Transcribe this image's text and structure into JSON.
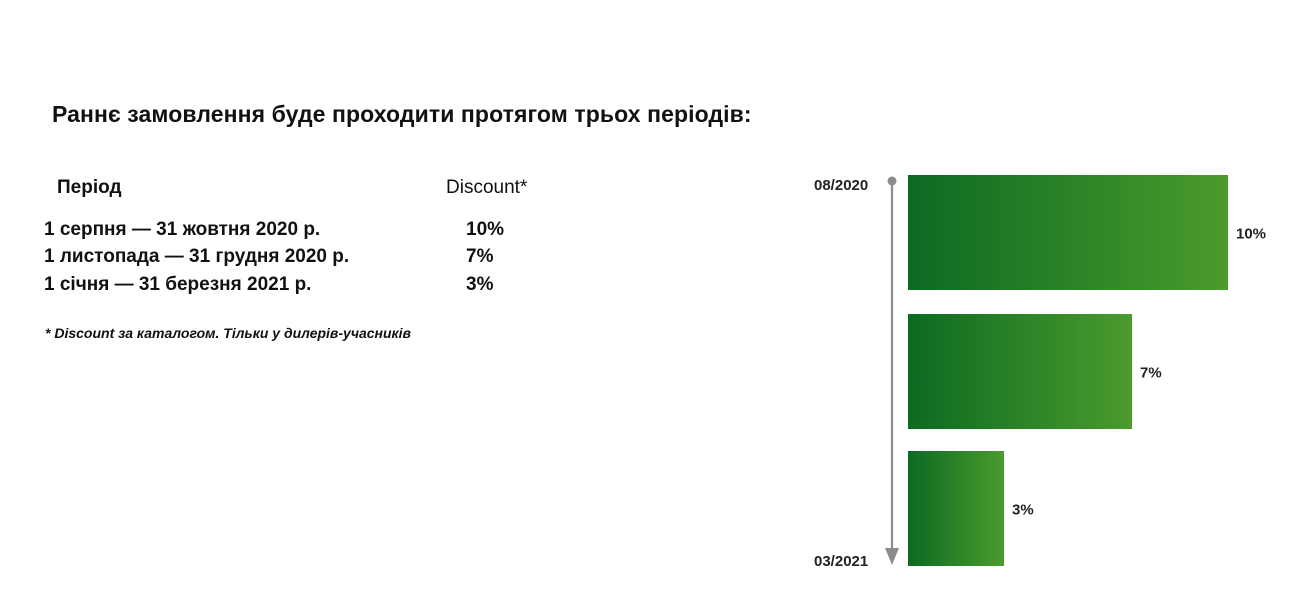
{
  "heading": "Раннє замовлення буде проходити протягом трьох періодів:",
  "table": {
    "col_period": "Період",
    "col_discount": "Discount*",
    "rows": [
      {
        "period": "1 серпня  — 31 жовтня 2020 р.",
        "discount": "10%"
      },
      {
        "period": "1 листопада — 31 грудня 2020 р.",
        "discount": "7%"
      },
      {
        "period": "1 січня — 31 березня 2021 р.",
        "discount": "3%"
      }
    ],
    "footnote": "* Discount за каталогом. Тільки у дилерів-учасників"
  },
  "chart_data": {
    "type": "bar",
    "orientation": "horizontal",
    "timeline_start": "08/2020",
    "timeline_end": "03/2021",
    "categories": [
      "1 серпня  — 31 жовтня 2020 р.",
      "1 листопада — 31 грудня 2020 р.",
      "1 січня — 31 березня 2021 р."
    ],
    "values": [
      10,
      7,
      3
    ],
    "data_labels": [
      "10%",
      "7%",
      "3%"
    ],
    "xlim": [
      0,
      10
    ],
    "title": "",
    "xlabel": "",
    "ylabel": "",
    "grid": false,
    "colors": {
      "bar_dark": "#0b6b22",
      "bar_light": "#4b9b2c",
      "axis": "#8c8c8c"
    }
  }
}
